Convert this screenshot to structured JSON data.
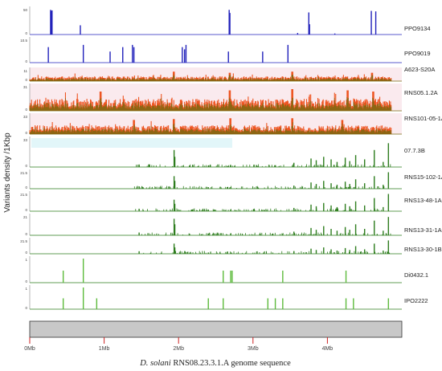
{
  "chart_data": {
    "type": "bar",
    "title": "",
    "xlabel_italic": "D. solani",
    "xlabel_rest": " RNS08.23.3.1.A genome sequence",
    "ylabel": "Variants density /1Kbp",
    "xlim": [
      0,
      5
    ],
    "x_ticks": [
      {
        "value": 0,
        "label": "0Mb"
      },
      {
        "value": 1,
        "label": "1Mb"
      },
      {
        "value": 2,
        "label": "2Mb"
      },
      {
        "value": 3,
        "label": "3Mb"
      },
      {
        "value": 4,
        "label": "4Mb"
      }
    ],
    "colors": {
      "blue": "#2222bb",
      "orange": "#ee5522",
      "olive": "#7a6a10",
      "green": "#2e7d1e",
      "light_green": "#5dbb3c",
      "band_pink": "#f6d8e0",
      "band_cyan": "#d6f2f6",
      "chromosome": "#c8c8c8",
      "tick_red": "#cc2222"
    },
    "series": [
      {
        "name": "PPO9134",
        "style": "sparse",
        "color": "blue",
        "ymax": 50,
        "yticks": [
          "50",
          "0"
        ],
        "peaks": [
          [
            0.28,
            48
          ],
          [
            0.29,
            46
          ],
          [
            0.3,
            47
          ],
          [
            0.68,
            18
          ],
          [
            2.68,
            48
          ],
          [
            2.69,
            42
          ],
          [
            3.75,
            43
          ],
          [
            3.76,
            20
          ],
          [
            4.59,
            46
          ],
          [
            4.65,
            45
          ],
          [
            3.6,
            3
          ],
          [
            4.1,
            2
          ]
        ]
      },
      {
        "name": "PPO9019",
        "style": "sparse",
        "color": "blue",
        "ymax": 10.5,
        "yticks": [
          "10.5",
          "0"
        ],
        "peaks": [
          [
            0.25,
            7
          ],
          [
            0.72,
            8
          ],
          [
            1.08,
            5
          ],
          [
            1.25,
            7
          ],
          [
            1.38,
            8
          ],
          [
            1.4,
            7
          ],
          [
            2.05,
            7
          ],
          [
            2.08,
            6
          ],
          [
            2.1,
            8
          ],
          [
            2.67,
            5
          ],
          [
            3.13,
            5
          ],
          [
            3.47,
            8
          ]
        ]
      },
      {
        "name": "A623-S20A",
        "style": "dense",
        "color": "orange",
        "ymax": 11,
        "yticks": [
          "11",
          "0"
        ],
        "base": 0.45,
        "seed": 11,
        "peaks": [
          [
            1.94,
            0.9
          ],
          [
            2.69,
            0.8
          ],
          [
            3.53,
            0.9
          ],
          [
            4.6,
            0.8
          ]
        ]
      },
      {
        "name": "RNS05.1.2A",
        "style": "dense",
        "color": "orange",
        "ymax": 31,
        "yticks": [
          "31",
          "0"
        ],
        "base": 0.5,
        "seed": 23,
        "peaks": [
          [
            0.95,
            0.8
          ],
          [
            2.69,
            0.85
          ],
          [
            3.53,
            0.9
          ],
          [
            4.27,
            0.85
          ],
          [
            4.62,
            0.8
          ]
        ]
      },
      {
        "name": "RNS101-05-1A",
        "style": "dense",
        "color": "orange",
        "ymax": 33,
        "yticks": [
          "33",
          "0"
        ],
        "base": 0.5,
        "seed": 37,
        "peaks": [
          [
            1.4,
            0.8
          ],
          [
            1.94,
            0.85
          ],
          [
            2.7,
            0.9
          ],
          [
            3.53,
            0.9
          ],
          [
            4.2,
            0.8
          ]
        ]
      },
      {
        "name": "07.7.3B",
        "style": "sparse",
        "color": "green",
        "ymax": 33,
        "yticks": [
          "33",
          "0"
        ],
        "peaks": [
          [
            1.47,
            3
          ],
          [
            1.94,
            20
          ],
          [
            1.95,
            12
          ],
          [
            2.4,
            2
          ],
          [
            2.7,
            2
          ],
          [
            3.05,
            2
          ],
          [
            3.3,
            2
          ],
          [
            3.55,
            5
          ],
          [
            3.78,
            10
          ],
          [
            3.85,
            8
          ],
          [
            3.95,
            12
          ],
          [
            4.05,
            9
          ],
          [
            4.13,
            6
          ],
          [
            4.24,
            11
          ],
          [
            4.3,
            7
          ],
          [
            4.38,
            14
          ],
          [
            4.5,
            9
          ],
          [
            4.63,
            20
          ],
          [
            4.75,
            6
          ],
          [
            4.82,
            28
          ]
        ]
      },
      {
        "name": "RNS15-102-1A",
        "style": "sparse",
        "color": "green",
        "ymax": 21.5,
        "yticks": [
          "21.5",
          "0"
        ],
        "peaks": [
          [
            1.47,
            3
          ],
          [
            1.94,
            16
          ],
          [
            1.95,
            10
          ],
          [
            2.4,
            2
          ],
          [
            2.7,
            2
          ],
          [
            3.55,
            4
          ],
          [
            3.78,
            8
          ],
          [
            3.85,
            6
          ],
          [
            3.95,
            10
          ],
          [
            4.05,
            7
          ],
          [
            4.13,
            5
          ],
          [
            4.24,
            9
          ],
          [
            4.3,
            6
          ],
          [
            4.38,
            12
          ],
          [
            4.5,
            7
          ],
          [
            4.63,
            16
          ],
          [
            4.75,
            5
          ],
          [
            4.82,
            21
          ]
        ]
      },
      {
        "name": "RNS13-48-1A",
        "style": "sparse",
        "color": "green",
        "ymax": 21.5,
        "yticks": [
          "21.5",
          "0"
        ],
        "peaks": [
          [
            1.47,
            3
          ],
          [
            1.94,
            14
          ],
          [
            1.95,
            9
          ],
          [
            2.4,
            2
          ],
          [
            2.7,
            2
          ],
          [
            3.55,
            4
          ],
          [
            3.78,
            8
          ],
          [
            3.85,
            6
          ],
          [
            3.95,
            10
          ],
          [
            4.05,
            7
          ],
          [
            4.13,
            5
          ],
          [
            4.24,
            9
          ],
          [
            4.3,
            6
          ],
          [
            4.38,
            12
          ],
          [
            4.5,
            7
          ],
          [
            4.63,
            16
          ],
          [
            4.75,
            5
          ],
          [
            4.82,
            21
          ]
        ]
      },
      {
        "name": "RNS13-31-1A",
        "style": "sparse",
        "color": "green",
        "ymax": 21,
        "yticks": [
          "21",
          "0"
        ],
        "peaks": [
          [
            1.47,
            3
          ],
          [
            1.94,
            18
          ],
          [
            1.95,
            12
          ],
          [
            2.4,
            2
          ],
          [
            2.7,
            2
          ],
          [
            3.55,
            4
          ],
          [
            3.78,
            8
          ],
          [
            3.85,
            6
          ],
          [
            3.95,
            10
          ],
          [
            4.05,
            7
          ],
          [
            4.13,
            5
          ],
          [
            4.24,
            9
          ],
          [
            4.3,
            6
          ],
          [
            4.38,
            12
          ],
          [
            4.5,
            7
          ],
          [
            4.63,
            16
          ],
          [
            4.75,
            5
          ],
          [
            4.82,
            20
          ]
        ]
      },
      {
        "name": "RNS13-30-1B",
        "style": "sparse",
        "color": "green",
        "ymax": 21.5,
        "yticks": [
          "21.5",
          "0"
        ],
        "peaks": [
          [
            1.47,
            4
          ],
          [
            1.94,
            16
          ],
          [
            1.95,
            10
          ],
          [
            2.4,
            2
          ],
          [
            2.7,
            2
          ],
          [
            3.55,
            4
          ],
          [
            3.78,
            8
          ],
          [
            3.85,
            6
          ],
          [
            3.95,
            10
          ],
          [
            4.05,
            7
          ],
          [
            4.13,
            5
          ],
          [
            4.24,
            9
          ],
          [
            4.3,
            6
          ],
          [
            4.38,
            12
          ],
          [
            4.5,
            7
          ],
          [
            4.63,
            16
          ],
          [
            4.75,
            5
          ],
          [
            4.82,
            21
          ]
        ]
      },
      {
        "name": "Di0432.1",
        "style": "sparse",
        "color": "light_green",
        "ymax": 1,
        "yticks": [
          "1",
          "0"
        ],
        "peaks": [
          [
            0.45,
            0.5
          ],
          [
            0.72,
            1.0
          ],
          [
            2.6,
            0.5
          ],
          [
            2.7,
            0.5
          ],
          [
            2.72,
            0.5
          ],
          [
            3.4,
            0.5
          ],
          [
            4.25,
            0.5
          ]
        ]
      },
      {
        "name": "IPO2222",
        "style": "sparse",
        "color": "light_green",
        "ymax": 1,
        "yticks": [
          "1",
          "0"
        ],
        "peaks": [
          [
            0.45,
            0.5
          ],
          [
            0.72,
            1.0
          ],
          [
            0.9,
            0.5
          ],
          [
            2.4,
            0.5
          ],
          [
            2.6,
            0.5
          ],
          [
            3.2,
            0.5
          ],
          [
            3.3,
            0.5
          ],
          [
            3.4,
            0.5
          ],
          [
            4.25,
            0.5
          ],
          [
            4.35,
            0.5
          ],
          [
            4.82,
            0.5
          ]
        ]
      }
    ]
  }
}
